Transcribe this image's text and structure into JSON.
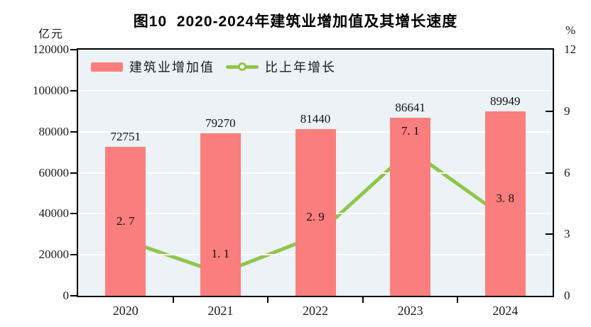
{
  "header": {
    "title": "图10  2020-2024年建筑业增加值及其增长速度",
    "left_axis_unit": "亿元",
    "right_axis_unit": "%"
  },
  "legend": {
    "items": [
      {
        "label": "建筑业增加值",
        "type": "bar"
      },
      {
        "label": "比上年增长",
        "type": "line"
      }
    ]
  },
  "chart_data": {
    "type": "bar",
    "subtype": "bar+line dual-axis",
    "title": "图10  2020-2024年建筑业增加值及其增长速度",
    "categories": [
      "2020",
      "2021",
      "2022",
      "2023",
      "2024"
    ],
    "series": [
      {
        "name": "建筑业增加值",
        "type": "bar",
        "axis": "left",
        "values": [
          72751,
          79270,
          81440,
          86641,
          89949
        ],
        "labels": [
          "72751",
          "79270",
          "81440",
          "86641",
          "89949"
        ],
        "color": "#fa7e7e"
      },
      {
        "name": "比上年增长",
        "type": "line",
        "axis": "right",
        "values": [
          2.7,
          1.1,
          2.9,
          7.1,
          3.8
        ],
        "labels": [
          "2. 7",
          "1. 1",
          "2. 9",
          "7. 1",
          "3. 8"
        ],
        "color": "#8fc54a"
      }
    ],
    "left_axis": {
      "unit": "亿元",
      "range": [
        0,
        120000
      ],
      "tick_step": 20000,
      "tick_labels": [
        "0",
        "20000",
        "40000",
        "60000",
        "80000",
        "100000",
        "120000"
      ]
    },
    "right_axis": {
      "unit": "%",
      "range": [
        0,
        12
      ],
      "tick_step": 3,
      "tick_labels": [
        "0",
        "3",
        "6",
        "9",
        "12"
      ]
    },
    "grid": true,
    "legend_position": "top-left-inside",
    "colors": {
      "plot_background": "#ecf2f5",
      "gridline": "#ffffff",
      "axis": "#000000",
      "bar": "#fa7e7e",
      "line": "#8fc54a",
      "marker_fill": "#fffef2",
      "text": "#1a1a1a"
    }
  }
}
